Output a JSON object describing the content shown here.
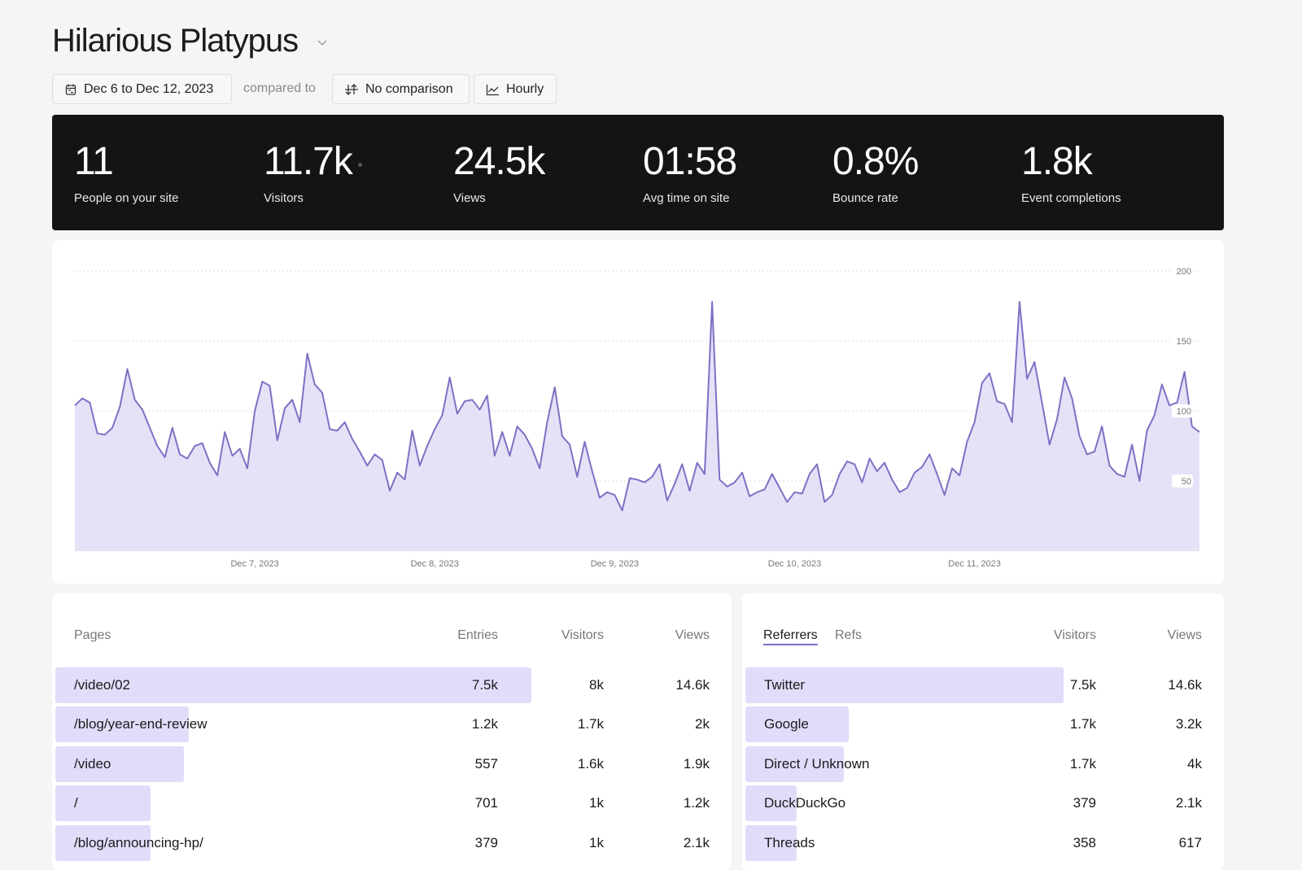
{
  "header": {
    "title": "Hilarious Platypus",
    "date_range": "Dec 6 to Dec 12, 2023",
    "compared_to": "compared to",
    "comparison": "No comparison",
    "interval": "Hourly"
  },
  "stats": [
    {
      "value": "11",
      "label": "People on your site"
    },
    {
      "value": "11.7k",
      "label": "Visitors"
    },
    {
      "value": "24.5k",
      "label": "Views"
    },
    {
      "value": "01:58",
      "label": "Avg time on site"
    },
    {
      "value": "0.8%",
      "label": "Bounce rate"
    },
    {
      "value": "1.8k",
      "label": "Event completions"
    }
  ],
  "chart_data": {
    "type": "area",
    "x_start": "Dec 6, 2023 00:00",
    "x_interval": "hourly",
    "x_ticks": [
      "Dec 7, 2023",
      "Dec 8, 2023",
      "Dec 9, 2023",
      "Dec 10, 2023",
      "Dec 11, 2023"
    ],
    "y_ticks": [
      50,
      100,
      150,
      200
    ],
    "ylim": [
      0,
      200
    ],
    "grid": true,
    "color": "#7b72c4",
    "fill": "#e5e2f8",
    "values": [
      104,
      109,
      106,
      84,
      83,
      88,
      103,
      130,
      108,
      101,
      88,
      75,
      67,
      88,
      69,
      66,
      75,
      77,
      63,
      54,
      85,
      68,
      73,
      59,
      100,
      121,
      118,
      79,
      102,
      108,
      92,
      141,
      119,
      113,
      87,
      86,
      92,
      80,
      71,
      61,
      69,
      65,
      43,
      56,
      51,
      86,
      61,
      75,
      87,
      97,
      124,
      98,
      107,
      108,
      101,
      111,
      68,
      85,
      68,
      89,
      83,
      73,
      59,
      92,
      117,
      82,
      76,
      53,
      78,
      57,
      38,
      42,
      40,
      29,
      52,
      51,
      49,
      53,
      62,
      36,
      48,
      62,
      43,
      63,
      55,
      178,
      51,
      46,
      49,
      56,
      39,
      42,
      44,
      55,
      45,
      35,
      42,
      41,
      55,
      62,
      35,
      40,
      55,
      64,
      62,
      49,
      66,
      57,
      63,
      51,
      42,
      45,
      56,
      60,
      69,
      55,
      40,
      59,
      54,
      78,
      92,
      120,
      127,
      107,
      105,
      92,
      178,
      123,
      135,
      106,
      76,
      94,
      124,
      109,
      82,
      69,
      71,
      89,
      61,
      55,
      53,
      76,
      50,
      86,
      97,
      119,
      104,
      106,
      128,
      89,
      85
    ]
  },
  "pages": {
    "header": "Pages",
    "columns": [
      "Entries",
      "Visitors",
      "Views"
    ],
    "rows": [
      {
        "name": "/video/02",
        "entries": "7.5k",
        "visitors": "8k",
        "views": "14.6k",
        "bar": 1.0
      },
      {
        "name": "/blog/year-end-review",
        "entries": "1.2k",
        "visitors": "1.7k",
        "views": "2k",
        "bar": 0.28
      },
      {
        "name": "/video",
        "entries": "557",
        "visitors": "1.6k",
        "views": "1.9k",
        "bar": 0.27
      },
      {
        "name": "/",
        "entries": "701",
        "visitors": "1k",
        "views": "1.2k",
        "bar": 0.2
      },
      {
        "name": "/blog/announcing-hp/",
        "entries": "379",
        "visitors": "1k",
        "views": "2.1k",
        "bar": 0.2
      }
    ]
  },
  "referrers": {
    "tabs": [
      "Referrers",
      "Refs"
    ],
    "active_tab": "Referrers",
    "columns": [
      "Visitors",
      "Views"
    ],
    "rows": [
      {
        "name": "Twitter",
        "visitors": "7.5k",
        "views": "14.6k",
        "bar": 1.0
      },
      {
        "name": "Google",
        "visitors": "1.7k",
        "views": "3.2k",
        "bar": 0.325
      },
      {
        "name": "Direct / Unknown",
        "visitors": "1.7k",
        "views": "4k",
        "bar": 0.31
      },
      {
        "name": "DuckDuckGo",
        "visitors": "379",
        "views": "2.1k",
        "bar": 0.16
      },
      {
        "name": "Threads",
        "visitors": "358",
        "views": "617",
        "bar": 0.16
      }
    ]
  }
}
